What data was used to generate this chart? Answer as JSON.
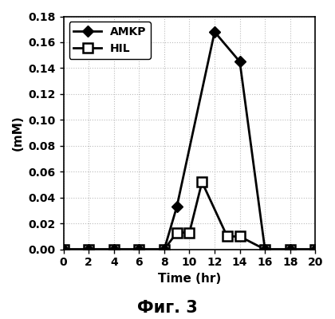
{
  "amkp_x": [
    0,
    2,
    4,
    6,
    8,
    9,
    12,
    14,
    16,
    18,
    20
  ],
  "amkp_y": [
    0.0,
    0.0,
    0.0,
    0.0,
    0.0,
    0.033,
    0.168,
    0.145,
    0.0,
    0.0,
    0.0
  ],
  "hil_x": [
    0,
    2,
    4,
    6,
    8,
    9,
    10,
    11,
    13,
    14,
    16,
    18,
    20
  ],
  "hil_y": [
    0.0,
    0.0,
    0.0,
    0.0,
    0.0,
    0.013,
    0.013,
    0.052,
    0.01,
    0.01,
    0.0,
    0.0,
    0.0
  ],
  "xlabel": "Time (hr)",
  "ylabel": "(mM)",
  "xlim": [
    0,
    20
  ],
  "ylim": [
    0.0,
    0.18
  ],
  "xticks": [
    0,
    2,
    4,
    6,
    8,
    10,
    12,
    14,
    16,
    18,
    20
  ],
  "yticks": [
    0.0,
    0.02,
    0.04,
    0.06,
    0.08,
    0.1,
    0.12,
    0.14,
    0.16,
    0.18
  ],
  "legend_amkp": "AMKP",
  "legend_hil": "HIL",
  "caption": "Фиг. 3",
  "line_color": "#000000",
  "bg_color": "#ffffff",
  "grid_color": "#bbbbbb",
  "axis_fontsize": 11,
  "tick_fontsize": 10,
  "caption_fontsize": 15,
  "legend_fontsize": 10,
  "marker_size_amkp": 7,
  "marker_size_hil": 8,
  "linewidth": 2.0
}
